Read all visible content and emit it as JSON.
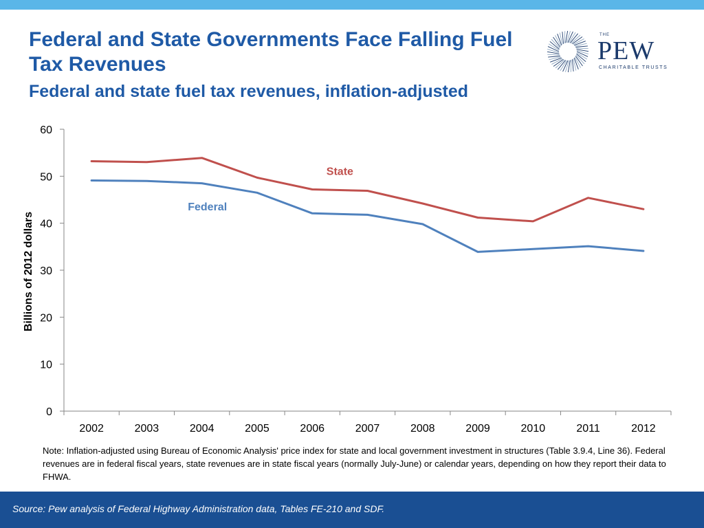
{
  "header": {
    "title": "Federal and State Governments Face Falling Fuel Tax Revenues",
    "subtitle": "Federal and state fuel tax revenues, inflation-adjusted"
  },
  "logo": {
    "the": "THE",
    "name": "PEW",
    "tagline": "CHARITABLE TRUSTS"
  },
  "chart_data": {
    "type": "line",
    "categories": [
      "2002",
      "2003",
      "2004",
      "2005",
      "2006",
      "2007",
      "2008",
      "2009",
      "2010",
      "2011",
      "2012"
    ],
    "series": [
      {
        "name": "State",
        "color": "#c0504d",
        "values": [
          53.2,
          53.0,
          53.9,
          49.7,
          47.2,
          46.9,
          44.2,
          41.2,
          40.4,
          45.4,
          43.0
        ]
      },
      {
        "name": "Federal",
        "color": "#4f81bd",
        "values": [
          49.1,
          49.0,
          48.5,
          46.5,
          42.1,
          41.8,
          39.8,
          33.9,
          34.5,
          35.1,
          34.1
        ]
      }
    ],
    "ylabel": "Billions of 2012 dollars",
    "xlabel": "",
    "ylim": [
      0,
      60
    ],
    "yticks": [
      0,
      10,
      20,
      30,
      40,
      50,
      60
    ],
    "grid": false,
    "legend": "inline labels"
  },
  "note": "Note: Inflation-adjusted using Bureau of Economic Analysis' price index for state and local government investment in structures (Table 3.9.4, Line 36). Federal revenues are in federal fiscal years, state revenues are in state fiscal years (normally  July-June) or calendar years, depending on how they report their data to FHWA.",
  "footer": {
    "source": "Source: Pew analysis of Federal Highway Administration data, Tables FE-210 and SDF."
  },
  "colors": {
    "top_bar": "#5ab6e8",
    "title": "#1f5aa6",
    "footer_bar": "#1a4f93",
    "logo": "#1b3a6b"
  }
}
